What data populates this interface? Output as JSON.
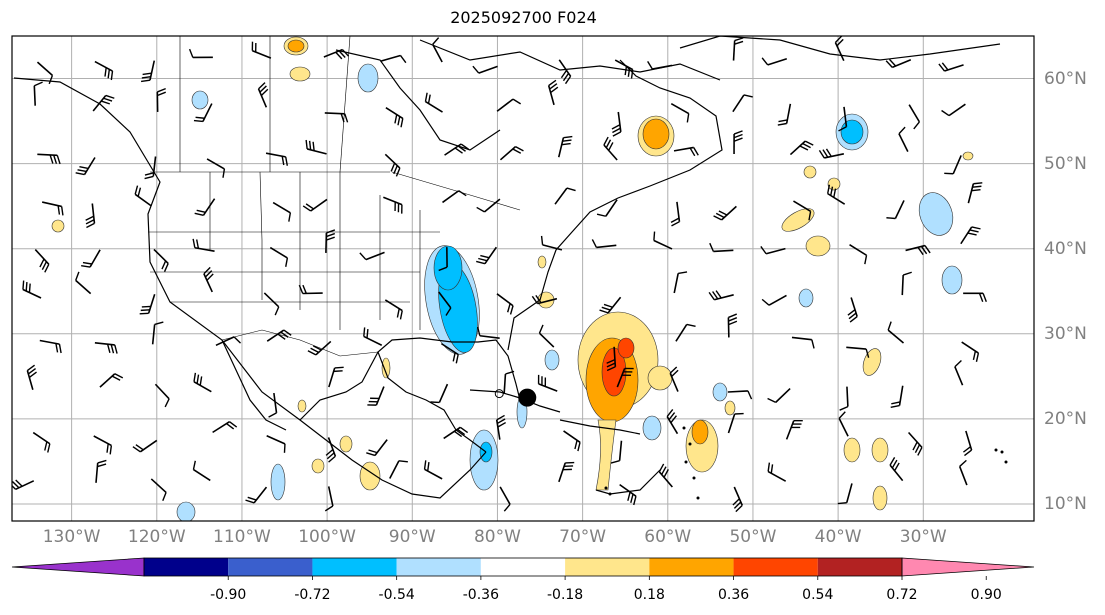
{
  "title": "2025092700 F024",
  "lon_labels": [
    "130°W",
    "120°W",
    "110°W",
    "100°W",
    "90°W",
    "80°W",
    "70°W",
    "60°W",
    "50°W",
    "40°W",
    "30°W"
  ],
  "lat_labels": [
    "60°N",
    "50°N",
    "40°N",
    "30°N",
    "20°N",
    "10°N"
  ],
  "map_extent": {
    "lon_min": -137,
    "lon_max": -17,
    "lat_min": 8,
    "lat_max": 65
  },
  "colorbar": {
    "ticks": [
      "-0.90",
      "-0.72",
      "-0.54",
      "-0.36",
      "-0.18",
      "0.18",
      "0.36",
      "0.54",
      "0.72",
      "0.90"
    ],
    "colors": [
      "#9932cc",
      "#00008b",
      "#3a5fcd",
      "#00bfff",
      "#b0e0ff",
      "#ffffff",
      "#ffe68c",
      "#ffa500",
      "#ff4500",
      "#b22222",
      "#ff88b0"
    ]
  },
  "marker": {
    "lon": -76.5,
    "lat": 22.5,
    "color": "#000000"
  },
  "icons": [
    "wind-barb",
    "storm-center-dot"
  ]
}
